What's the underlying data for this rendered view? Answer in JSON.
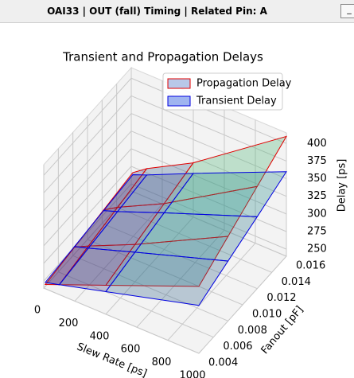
{
  "window": {
    "title": "OAI33 | OUT (fall) Timing | Related Pin: A",
    "button": "_"
  },
  "chart_data": {
    "type": "surface3d",
    "title": "Transient and Propagation Delays",
    "x_label": "Slew Rate [ps]",
    "y_label": "Fanout [pF]",
    "z_label": "Delay [ps]",
    "x": [
      10,
      100,
      400,
      1000
    ],
    "y": [
      0.004,
      0.008,
      0.012,
      0.016
    ],
    "xlim": [
      0,
      1000
    ],
    "xticks": [
      0,
      200,
      400,
      600,
      800,
      1000
    ],
    "ylim": [
      0.004,
      0.016
    ],
    "yticks": [
      0.004,
      0.006,
      0.008,
      {
        "value": 0.01,
        "label": "0.010"
      },
      0.012,
      0.014,
      0.016
    ],
    "zlim": [
      240,
      415
    ],
    "zticks": [
      250,
      275,
      300,
      325,
      350,
      375,
      400
    ],
    "grid": true,
    "legend": "upper right",
    "series": [
      {
        "name": "Propagation Delay",
        "color": "#e00000",
        "face": "#b8c8e8",
        "values": [
          [
            246,
            254,
            281,
            335
          ],
          [
            253,
            263,
            293,
            360
          ],
          [
            260,
            272,
            305,
            385
          ],
          [
            267,
            281,
            317,
            410
          ]
        ]
      },
      {
        "name": "Transient Delay",
        "color": "#0000e0",
        "face": "#9fb4f0",
        "values": [
          [
            249,
            254,
            272,
            308
          ],
          [
            254,
            260,
            282,
            325
          ],
          [
            259,
            266,
            292,
            342
          ],
          [
            264,
            272,
            302,
            360
          ]
        ]
      }
    ]
  }
}
